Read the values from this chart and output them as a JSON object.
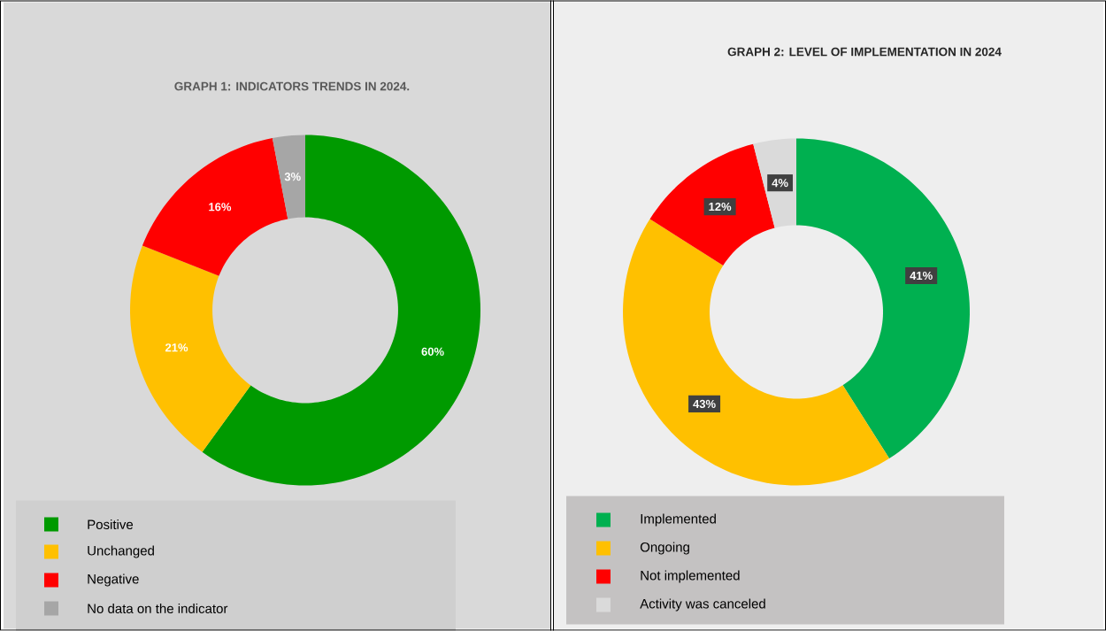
{
  "chart_data": [
    {
      "type": "donut",
      "title": "GRAPH 1: INDICATORS TRENDS IN 2024.",
      "categories": [
        "Positive",
        "Unchanged",
        "Negative",
        "No data on the indicator"
      ],
      "values": [
        60,
        21,
        16,
        3
      ],
      "colors": [
        "#009a00",
        "#ffc000",
        "#ff0000",
        "#a6a6a6"
      ],
      "value_labels": [
        "60%",
        "21%",
        "16%",
        "3%"
      ],
      "legend": "bottom"
    },
    {
      "type": "donut",
      "title": "GRAPH 2: LEVEL OF IMPLEMENTATION IN 2024",
      "categories": [
        "Implemented",
        "Ongoing",
        "Not implemented",
        "Activity was canceled"
      ],
      "values": [
        41,
        43,
        12,
        4
      ],
      "colors": [
        "#00b050",
        "#ffc000",
        "#ff0000",
        "#dadada"
      ],
      "value_labels": [
        "41%",
        "43%",
        "12%",
        "4%"
      ],
      "legend": "bottom"
    }
  ]
}
